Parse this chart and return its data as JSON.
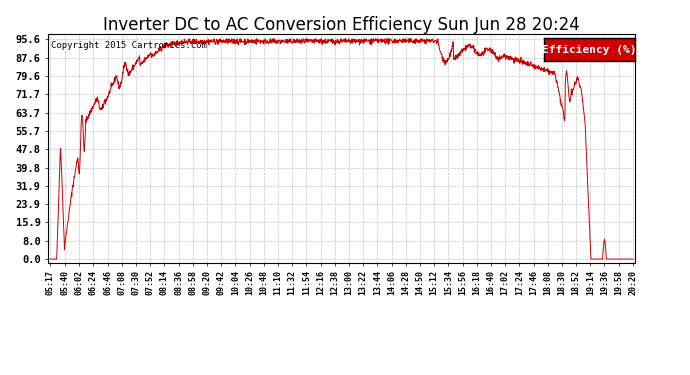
{
  "title": "Inverter DC to AC Conversion Efficiency Sun Jun 28 20:24",
  "copyright_text": "Copyright 2015 Cartronics.com",
  "legend_label": "Efficiency (%)",
  "legend_bg": "#cc0000",
  "legend_text_color": "#ffffff",
  "line_color": "#cc0000",
  "background_color": "#ffffff",
  "plot_bg_color": "#ffffff",
  "grid_color": "#bbbbbb",
  "title_fontsize": 12,
  "yticks": [
    0.0,
    8.0,
    15.9,
    23.9,
    31.9,
    39.8,
    47.8,
    55.7,
    63.7,
    71.7,
    79.6,
    87.6,
    95.6
  ],
  "ymin": -1.5,
  "ymax": 98.0,
  "xtick_labels": [
    "05:17",
    "05:40",
    "06:02",
    "06:24",
    "06:46",
    "07:08",
    "07:30",
    "07:52",
    "08:14",
    "08:36",
    "08:58",
    "09:20",
    "09:42",
    "10:04",
    "10:26",
    "10:48",
    "11:10",
    "11:32",
    "11:54",
    "12:16",
    "12:38",
    "13:00",
    "13:22",
    "13:44",
    "14:06",
    "14:28",
    "14:50",
    "15:12",
    "15:34",
    "15:56",
    "16:18",
    "16:40",
    "17:02",
    "17:24",
    "17:46",
    "18:08",
    "18:30",
    "18:52",
    "19:14",
    "19:36",
    "19:58",
    "20:20"
  ]
}
